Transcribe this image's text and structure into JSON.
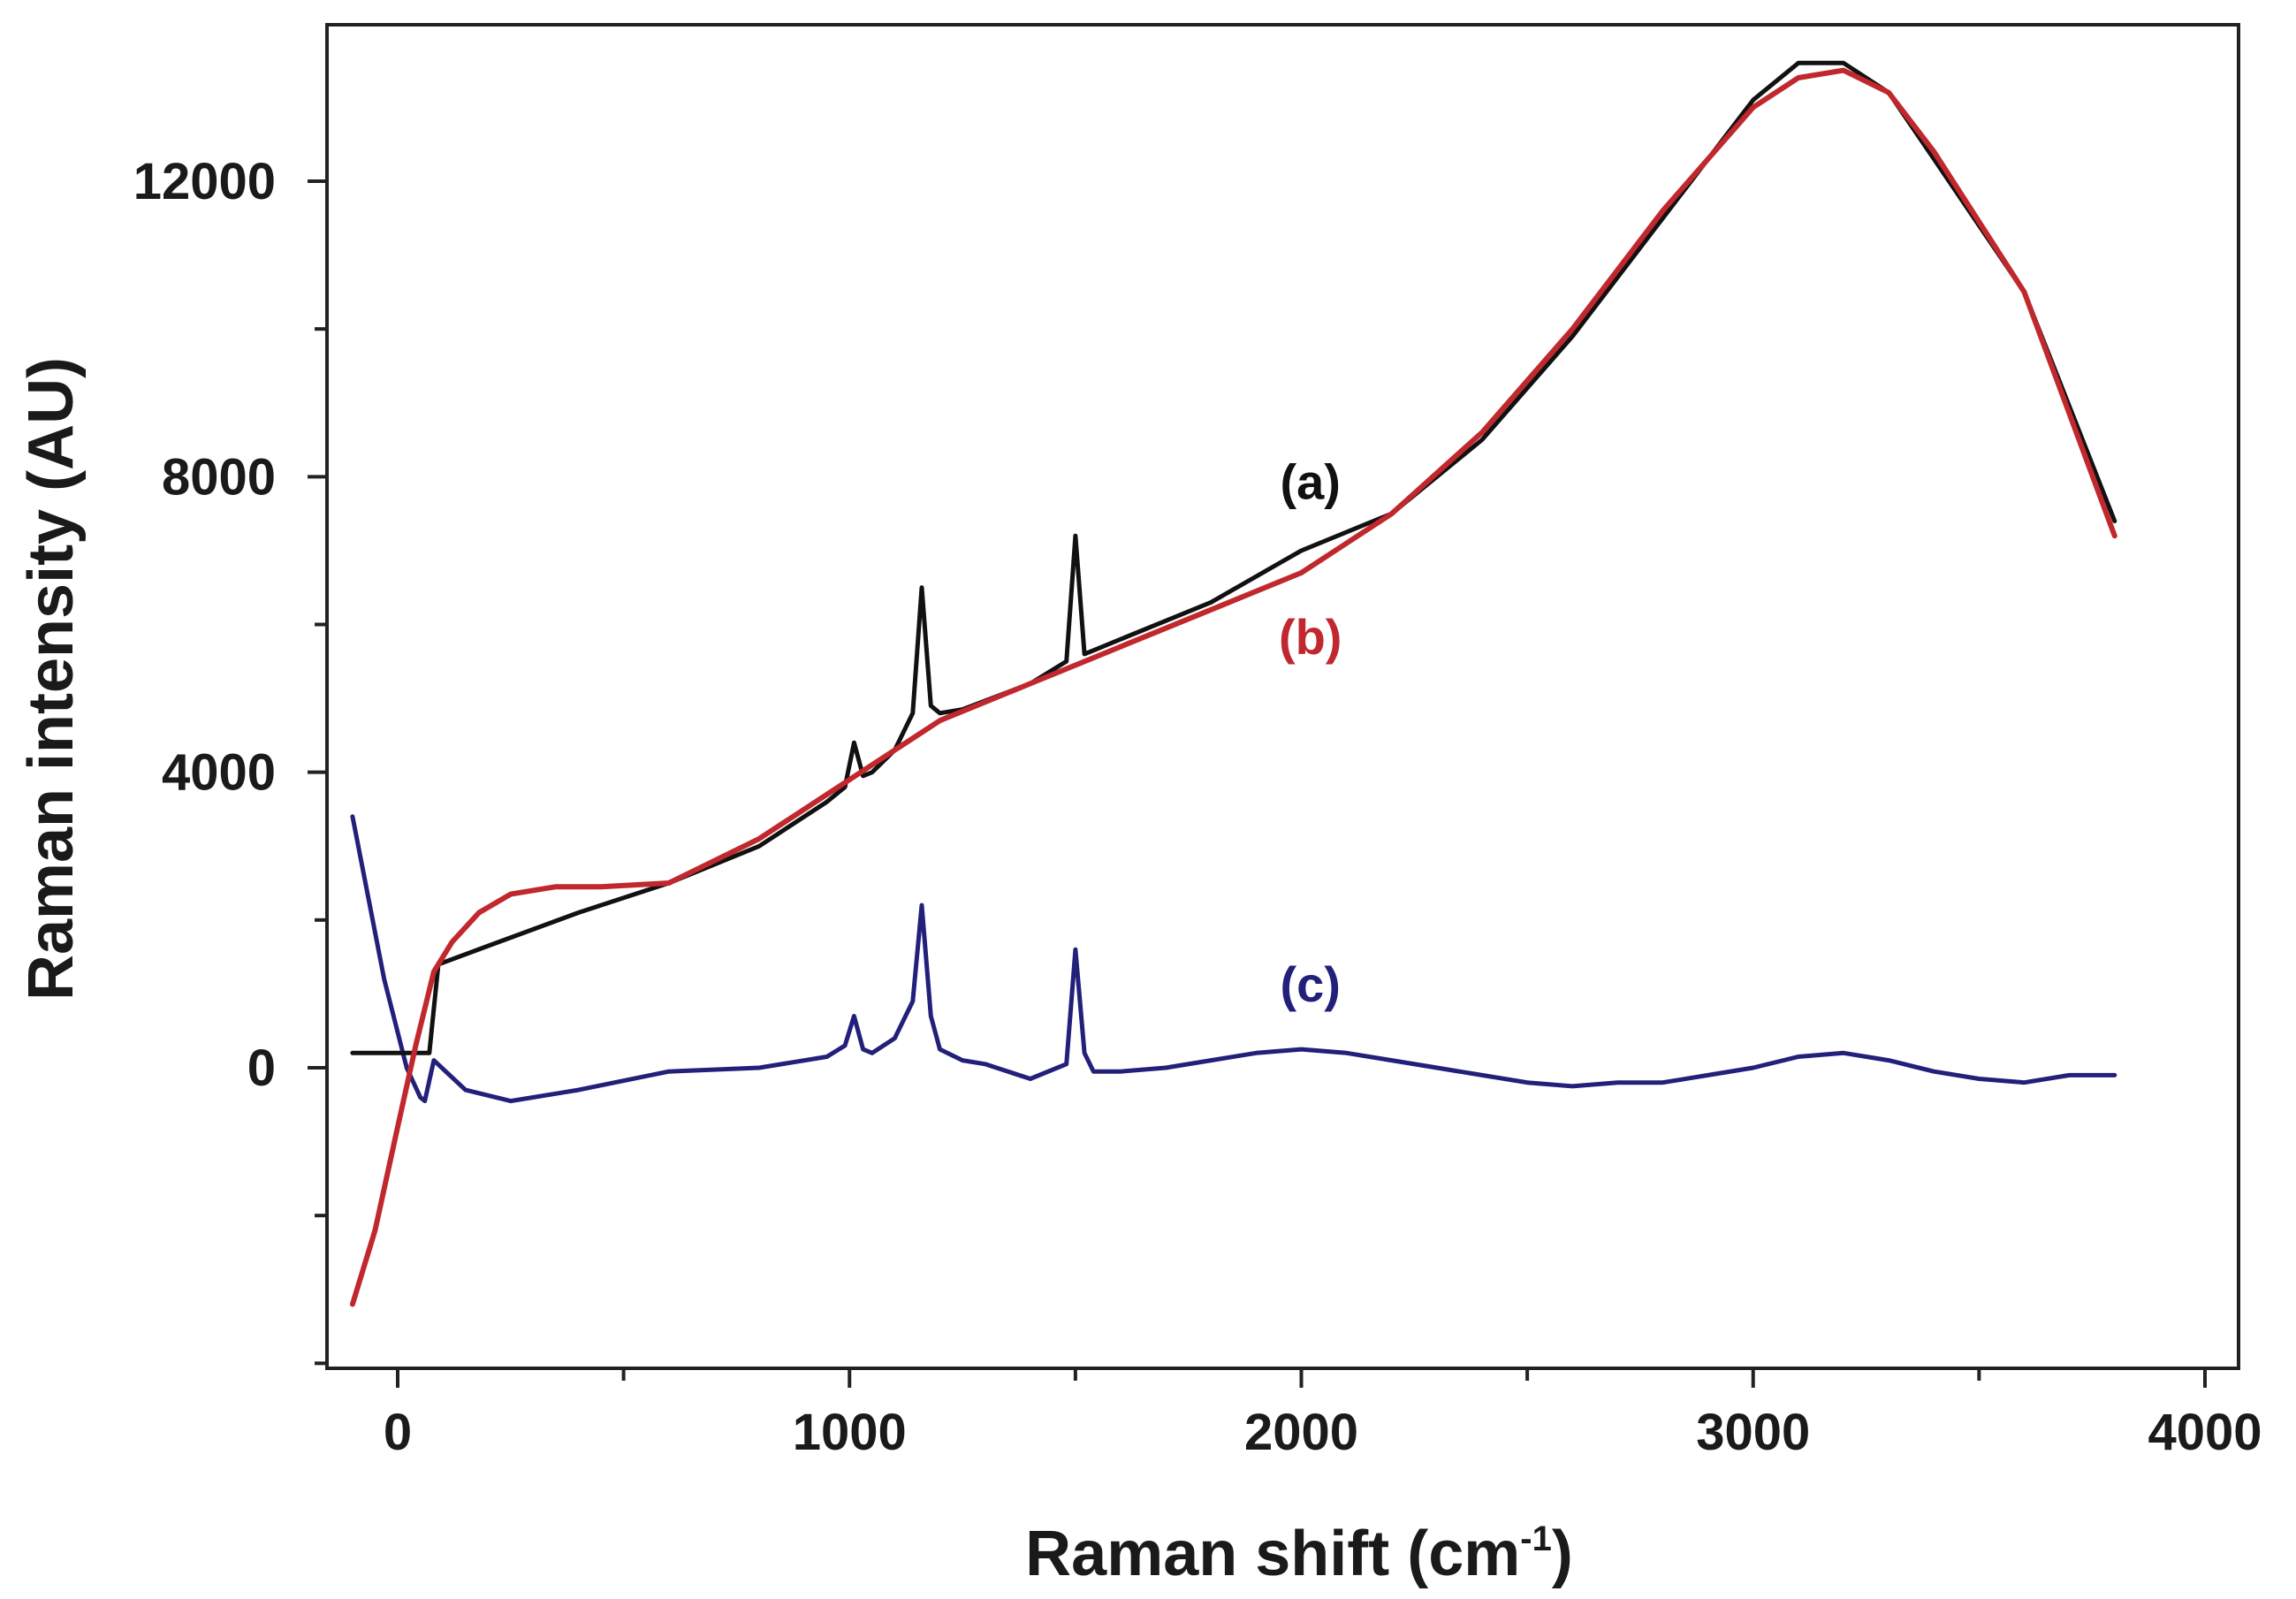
{
  "chart_data": {
    "type": "line",
    "title": "",
    "xlabel_main": "Raman shift (cm",
    "xlabel_sup": "-1",
    "xlabel_close": ")",
    "ylabel": "Raman intensity (AU)",
    "xlim": [
      -150,
      4100
    ],
    "ylim": [
      -4100,
      14000
    ],
    "xticks": [
      0,
      1000,
      2000,
      3000,
      4000
    ],
    "xtick_labels": [
      "0",
      "1000",
      "2000",
      "3000",
      "4000"
    ],
    "xminor_ticks": [
      500,
      1500,
      2500,
      3500
    ],
    "yticks": [
      0,
      4000,
      8000,
      12000
    ],
    "ytick_labels": [
      "0",
      "4000",
      "8000",
      "12000"
    ],
    "yminor_ticks": [
      -4000,
      -2000,
      2000,
      6000,
      10000
    ],
    "grid": false,
    "colors": {
      "a": "#111111",
      "b": "#c0282d",
      "c": "#22207a",
      "axis": "#222222"
    },
    "series": [
      {
        "name": "(a)",
        "label_pos": [
          2020,
          7700
        ],
        "x": [
          -100,
          70,
          90,
          200,
          400,
          600,
          800,
          950,
          990,
          1010,
          1030,
          1050,
          1100,
          1140,
          1160,
          1180,
          1200,
          1250,
          1400,
          1480,
          1500,
          1520,
          1540,
          1600,
          1800,
          2000,
          2200,
          2400,
          2600,
          2800,
          3000,
          3100,
          3200,
          3300,
          3400,
          3600,
          3800
        ],
        "y": [
          200,
          200,
          1400,
          1650,
          2100,
          2500,
          3000,
          3600,
          3800,
          4400,
          3950,
          4000,
          4300,
          4800,
          6500,
          4900,
          4800,
          4850,
          5200,
          5500,
          7200,
          5600,
          5650,
          5800,
          6300,
          7000,
          7500,
          8500,
          9900,
          11500,
          13100,
          13600,
          13600,
          13200,
          12300,
          10500,
          7400
        ]
      },
      {
        "name": "(b)",
        "label_pos": [
          2020,
          5600
        ],
        "x": [
          -100,
          -50,
          0,
          40,
          80,
          120,
          180,
          250,
          350,
          450,
          600,
          800,
          1000,
          1200,
          1400,
          1600,
          1800,
          2000,
          2200,
          2400,
          2600,
          2800,
          3000,
          3100,
          3200,
          3300,
          3400,
          3600,
          3800
        ],
        "y": [
          -3200,
          -2200,
          -800,
          300,
          1300,
          1700,
          2100,
          2350,
          2450,
          2450,
          2500,
          3100,
          3900,
          4700,
          5200,
          5700,
          6200,
          6700,
          7500,
          8600,
          10000,
          11600,
          13000,
          13400,
          13500,
          13200,
          12400,
          10500,
          7200
        ]
      },
      {
        "name": "(c)",
        "label_pos": [
          2020,
          900
        ],
        "x": [
          -100,
          -30,
          20,
          50,
          60,
          80,
          150,
          250,
          400,
          600,
          800,
          950,
          990,
          1010,
          1030,
          1050,
          1100,
          1140,
          1160,
          1180,
          1200,
          1250,
          1300,
          1400,
          1480,
          1500,
          1520,
          1540,
          1600,
          1700,
          1800,
          1900,
          2000,
          2100,
          2200,
          2300,
          2400,
          2500,
          2600,
          2700,
          2800,
          2900,
          3000,
          3100,
          3200,
          3300,
          3400,
          3500,
          3600,
          3700,
          3800
        ],
        "y": [
          3400,
          1200,
          0,
          -400,
          -450,
          100,
          -300,
          -450,
          -300,
          -50,
          0,
          150,
          300,
          700,
          250,
          200,
          400,
          900,
          2200,
          700,
          250,
          100,
          50,
          -150,
          50,
          1600,
          200,
          -50,
          -50,
          0,
          100,
          200,
          250,
          200,
          100,
          0,
          -100,
          -200,
          -250,
          -200,
          -200,
          -100,
          0,
          150,
          200,
          100,
          -50,
          -150,
          -200,
          -100,
          -100
        ]
      }
    ]
  }
}
